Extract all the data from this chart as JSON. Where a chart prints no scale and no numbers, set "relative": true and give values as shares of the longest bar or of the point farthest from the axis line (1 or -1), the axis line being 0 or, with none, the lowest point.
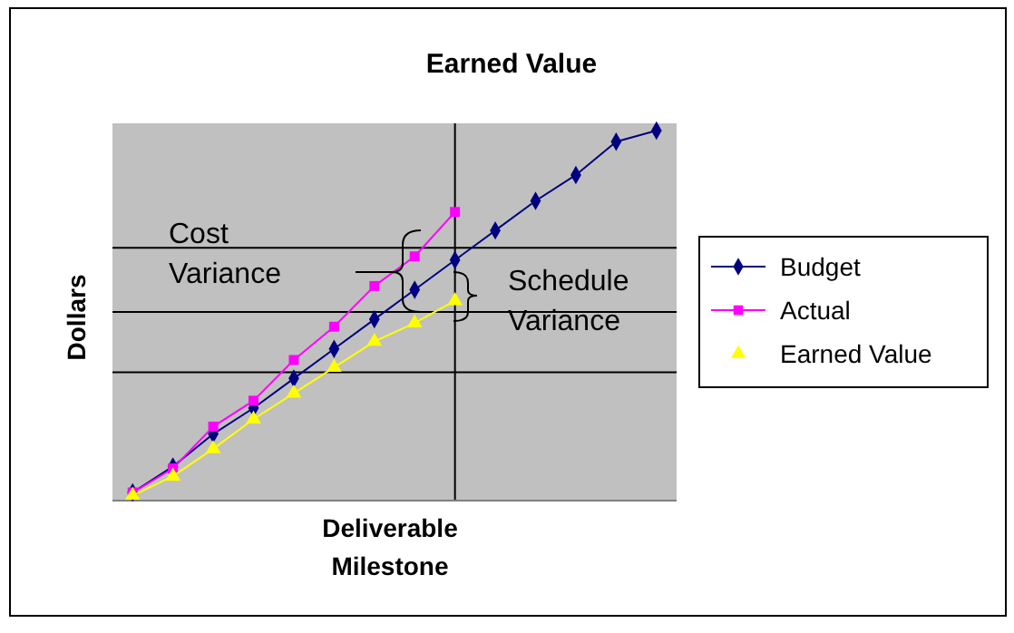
{
  "chart_data": {
    "type": "line",
    "title": "Earned Value",
    "xlabel": "Deliverable Milestone",
    "ylabel": "Dollars",
    "relative": true,
    "grid": true,
    "legend": "right",
    "annotations": [
      "Cost Variance",
      "Schedule Variance"
    ],
    "categories": [
      null,
      null,
      null,
      null,
      null,
      null,
      null,
      null,
      null,
      null,
      null,
      null,
      null,
      null
    ],
    "series": [
      {
        "name": "Budget",
        "color": "#000080",
        "marker": "diamond",
        "values": [
          0.022,
          0.092,
          0.18,
          0.25,
          0.33,
          0.41,
          0.49,
          0.57,
          0.65,
          0.73,
          0.81,
          0.88,
          0.97,
          1
        ]
      },
      {
        "name": "Actual",
        "color": "#ff00ff",
        "marker": "square",
        "values": [
          0.022,
          0.087,
          0.2,
          0.27,
          0.38,
          0.47,
          0.58,
          0.66,
          0.78,
          null,
          null,
          null,
          null,
          null
        ]
      },
      {
        "name": "Earned Value",
        "color": "#ffff00",
        "marker": "triangle",
        "values": [
          0.014,
          0.066,
          0.14,
          0.22,
          0.29,
          0.36,
          0.43,
          0.48,
          0.54,
          null,
          null,
          null,
          null,
          null
        ]
      }
    ]
  }
}
